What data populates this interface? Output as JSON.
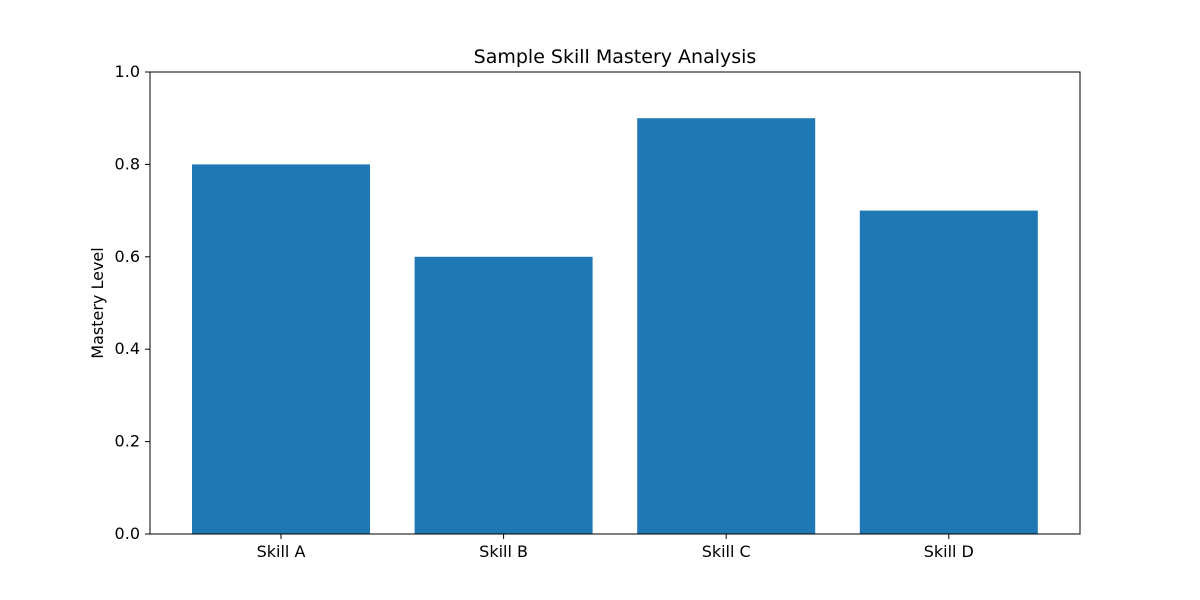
{
  "chart_data": {
    "type": "bar",
    "title": "Sample Skill Mastery Analysis",
    "xlabel": "",
    "ylabel": "Mastery Level",
    "categories": [
      "Skill A",
      "Skill B",
      "Skill C",
      "Skill D"
    ],
    "values": [
      0.8,
      0.6,
      0.9,
      0.7
    ],
    "ylim": [
      0,
      1.0
    ],
    "yticks": [
      "0.0",
      "0.2",
      "0.4",
      "0.6",
      "0.8",
      "1.0"
    ],
    "grid": false,
    "bar_color": "#1f77b4"
  }
}
